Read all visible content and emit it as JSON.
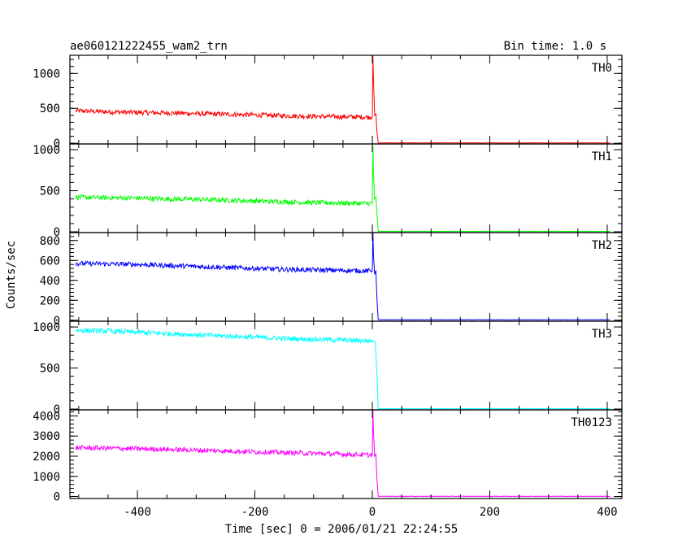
{
  "chart_data": {
    "type": "line",
    "title": "ae060121222455_wam2_trn",
    "subtitle": "Bin time: 1.0 s",
    "xlabel": "Time [sec] 0 = 2006/01/21 22:24:55",
    "ylabel": "Counts/sec",
    "xlim": [
      -515,
      425
    ],
    "x_ticks": [
      -400,
      -200,
      0,
      200,
      400
    ],
    "panels": [
      {
        "name": "TH0",
        "color": "#ff0000",
        "ylim": [
          -10,
          1260
        ],
        "y_ticks": [
          0,
          500,
          1000
        ],
        "x": [
          -505,
          -450,
          -400,
          -350,
          -300,
          -250,
          -200,
          -150,
          -100,
          -50,
          -5,
          0,
          1,
          2,
          4,
          6,
          8,
          10,
          15,
          50,
          100,
          200,
          300,
          400,
          405
        ],
        "values": [
          465,
          450,
          440,
          435,
          425,
          415,
          405,
          395,
          385,
          380,
          375,
          380,
          1260,
          900,
          400,
          420,
          150,
          5,
          5,
          5,
          5,
          5,
          5,
          5,
          5
        ]
      },
      {
        "name": "TH1",
        "color": "#00ff00",
        "ylim": [
          -10,
          1070
        ],
        "y_ticks": [
          0,
          500,
          1000
        ],
        "x": [
          -505,
          -450,
          -400,
          -350,
          -300,
          -250,
          -200,
          -150,
          -100,
          -50,
          -5,
          0,
          1,
          2,
          4,
          6,
          8,
          10,
          15,
          50,
          100,
          200,
          300,
          400,
          405
        ],
        "values": [
          420,
          415,
          410,
          400,
          395,
          385,
          375,
          365,
          355,
          350,
          345,
          350,
          1050,
          700,
          400,
          420,
          200,
          5,
          5,
          5,
          5,
          5,
          5,
          5,
          5
        ]
      },
      {
        "name": "TH2",
        "color": "#0000ff",
        "ylim": [
          -10,
          880
        ],
        "y_ticks": [
          0,
          200,
          400,
          600,
          800
        ],
        "x": [
          -505,
          -450,
          -400,
          -350,
          -300,
          -250,
          -200,
          -150,
          -100,
          -50,
          -5,
          0,
          1,
          2,
          4,
          6,
          8,
          10,
          15,
          50,
          100,
          200,
          300,
          400,
          405
        ],
        "values": [
          570,
          565,
          560,
          550,
          540,
          530,
          520,
          510,
          505,
          500,
          495,
          500,
          880,
          650,
          460,
          500,
          200,
          5,
          5,
          5,
          5,
          5,
          5,
          5,
          5
        ]
      },
      {
        "name": "TH3",
        "color": "#00ffff",
        "ylim": [
          -10,
          1070
        ],
        "y_ticks": [
          0,
          500,
          1000
        ],
        "x": [
          -505,
          -450,
          -400,
          -350,
          -300,
          -250,
          -200,
          -150,
          -100,
          -50,
          -5,
          0,
          5,
          8,
          10,
          15,
          50,
          100,
          200,
          300,
          400,
          405
        ],
        "values": [
          960,
          950,
          935,
          920,
          905,
          890,
          875,
          860,
          850,
          840,
          830,
          835,
          820,
          400,
          5,
          5,
          5,
          5,
          5,
          5,
          5,
          5
        ]
      },
      {
        "name": "TH0123",
        "color": "#ff00ff",
        "ylim": [
          -100,
          4300
        ],
        "y_ticks": [
          0,
          1000,
          2000,
          3000,
          4000
        ],
        "x": [
          -505,
          -450,
          -400,
          -350,
          -300,
          -250,
          -200,
          -150,
          -100,
          -50,
          -5,
          0,
          1,
          2,
          4,
          6,
          8,
          10,
          15,
          50,
          100,
          200,
          300,
          400,
          405
        ],
        "values": [
          2420,
          2400,
          2370,
          2340,
          2300,
          2260,
          2220,
          2180,
          2140,
          2100,
          2060,
          2080,
          4300,
          3200,
          2000,
          2100,
          800,
          10,
          10,
          10,
          10,
          10,
          10,
          10,
          10
        ]
      }
    ]
  }
}
